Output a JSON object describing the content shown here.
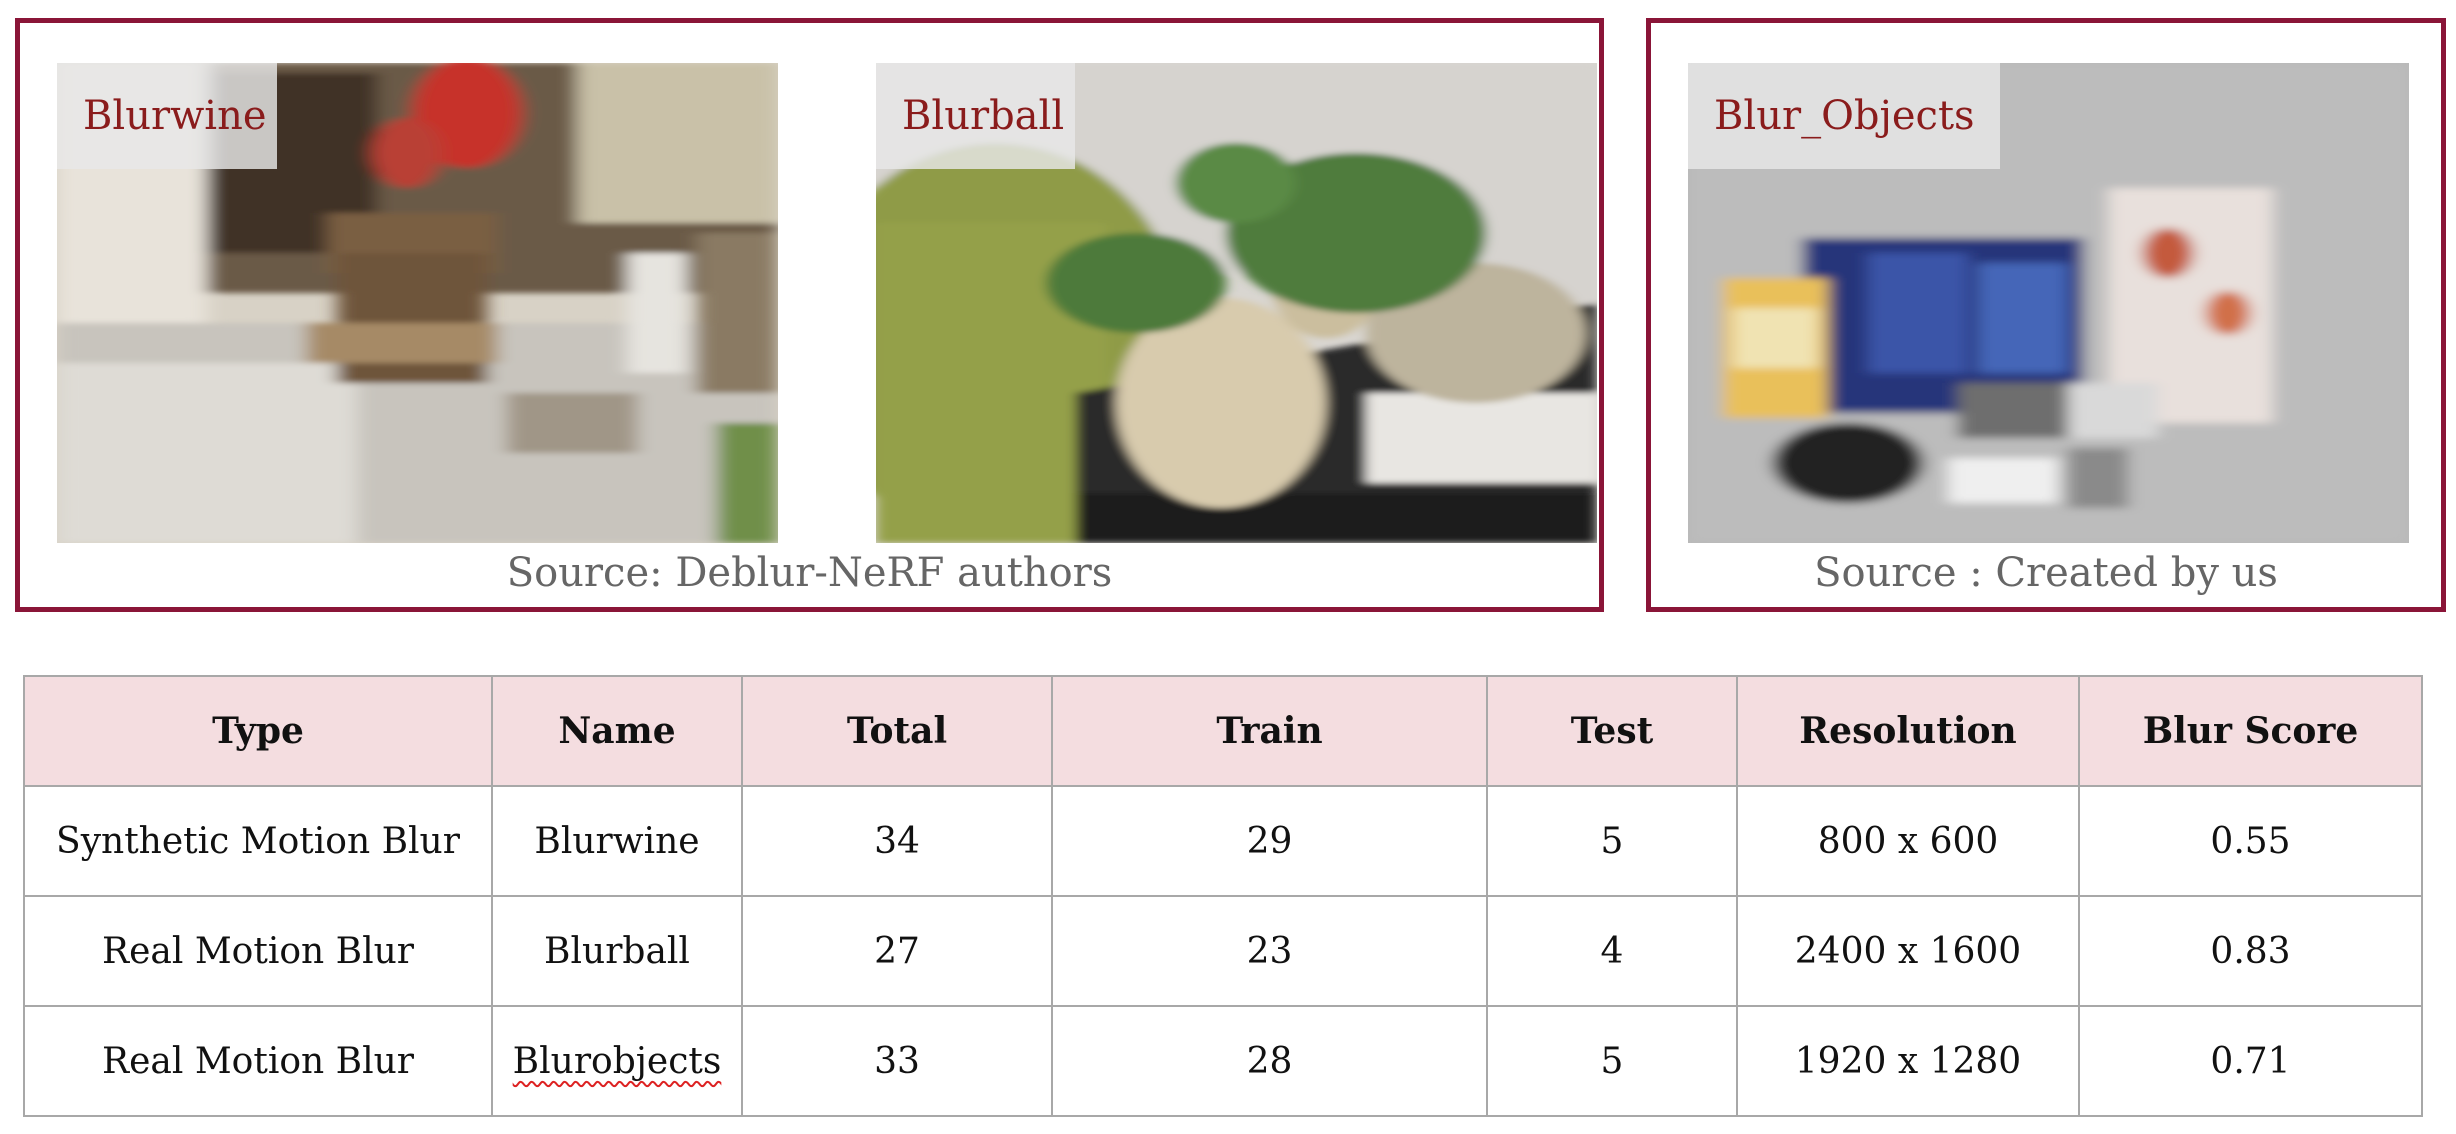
{
  "panels": {
    "left": {
      "images": [
        {
          "label": "Blurwine"
        },
        {
          "label": "Blurball"
        }
      ],
      "source": "Source: Deblur-NeRF authors"
    },
    "right": {
      "images": [
        {
          "label": "Blur_Objects"
        }
      ],
      "source": "Source : Created by us"
    }
  },
  "table": {
    "headers": [
      "Type",
      "Name",
      "Total",
      "Train",
      "Test",
      "Resolution",
      "Blur Score"
    ],
    "rows": [
      [
        "Synthetic Motion Blur",
        "Blurwine",
        "34",
        "29",
        "5",
        "800 x 600",
        "0.55"
      ],
      [
        "Real Motion Blur",
        "Blurball",
        "27",
        "23",
        "4",
        "2400 x 1600",
        "0.83"
      ],
      [
        "Real Motion Blur",
        "Blurobjects",
        "33",
        "28",
        "5",
        "1920 x 1280",
        "0.71"
      ]
    ]
  },
  "colors": {
    "frame": "#8a1538",
    "label_text": "#8a1c1c",
    "header_bg": "#f4dde0"
  }
}
